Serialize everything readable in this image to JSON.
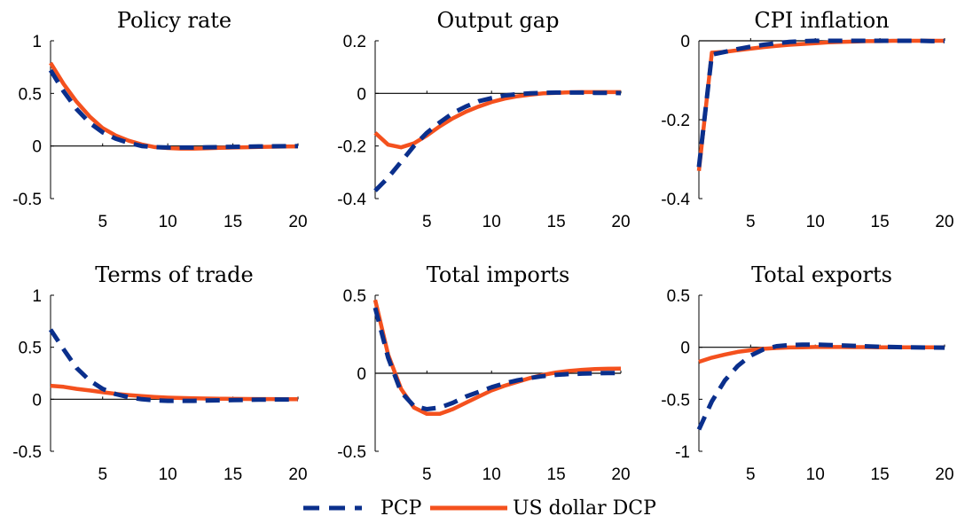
{
  "colors": {
    "pcp": "#0a2f8c",
    "dcp": "#f4511e",
    "axis": "#000000"
  },
  "legend": {
    "pcp_label": "PCP",
    "dcp_label": "US dollar DCP",
    "placement": "bottom-center"
  },
  "chart_data": [
    {
      "type": "line",
      "title": "Policy rate",
      "x": [
        1,
        2,
        3,
        4,
        5,
        6,
        7,
        8,
        9,
        10,
        11,
        12,
        13,
        14,
        15,
        16,
        17,
        18,
        19,
        20
      ],
      "xlim": [
        1,
        20
      ],
      "xticks": [
        5,
        10,
        15,
        20
      ],
      "xtick_labels": [
        "5",
        "10",
        "15",
        "20"
      ],
      "ylim": [
        -0.5,
        1
      ],
      "yticks": [
        -0.5,
        0,
        0.5,
        1
      ],
      "ytick_labels": [
        "-0.5",
        "0",
        "0.5",
        "1"
      ],
      "series": [
        {
          "name": "PCP",
          "values": [
            0.72,
            0.52,
            0.35,
            0.22,
            0.13,
            0.07,
            0.03,
            0.0,
            -0.01,
            -0.015,
            -0.015,
            -0.015,
            -0.012,
            -0.01,
            -0.008,
            -0.006,
            -0.004,
            -0.003,
            -0.002,
            -0.001
          ]
        },
        {
          "name": "US dollar DCP",
          "values": [
            0.79,
            0.59,
            0.42,
            0.28,
            0.17,
            0.1,
            0.05,
            0.015,
            -0.01,
            -0.02,
            -0.025,
            -0.025,
            -0.022,
            -0.018,
            -0.015,
            -0.012,
            -0.009,
            -0.007,
            -0.005,
            -0.004
          ]
        }
      ]
    },
    {
      "type": "line",
      "title": "Output gap",
      "x": [
        1,
        2,
        3,
        4,
        5,
        6,
        7,
        8,
        9,
        10,
        11,
        12,
        13,
        14,
        15,
        16,
        17,
        18,
        19,
        20
      ],
      "xlim": [
        1,
        20
      ],
      "xticks": [
        5,
        10,
        15,
        20
      ],
      "xtick_labels": [
        "5",
        "10",
        "15",
        "20"
      ],
      "ylim": [
        -0.4,
        0.2
      ],
      "yticks": [
        -0.4,
        -0.2,
        0,
        0.2
      ],
      "ytick_labels": [
        "-0.4",
        "-0.2",
        "0",
        "0.2"
      ],
      "series": [
        {
          "name": "PCP",
          "values": [
            -0.37,
            -0.32,
            -0.26,
            -0.2,
            -0.15,
            -0.11,
            -0.075,
            -0.05,
            -0.03,
            -0.018,
            -0.008,
            -0.003,
            0.0,
            0.002,
            0.003,
            0.003,
            0.003,
            0.002,
            0.002,
            0.001
          ]
        },
        {
          "name": "US dollar DCP",
          "values": [
            -0.15,
            -0.195,
            -0.205,
            -0.19,
            -0.16,
            -0.125,
            -0.095,
            -0.07,
            -0.05,
            -0.033,
            -0.02,
            -0.011,
            -0.005,
            0.0,
            0.002,
            0.004,
            0.005,
            0.005,
            0.005,
            0.005
          ]
        }
      ]
    },
    {
      "type": "line",
      "title": "CPI inflation",
      "x": [
        1,
        2,
        3,
        4,
        5,
        6,
        7,
        8,
        9,
        10,
        11,
        12,
        13,
        14,
        15,
        16,
        17,
        18,
        19,
        20
      ],
      "xlim": [
        1,
        20
      ],
      "xticks": [
        5,
        10,
        15,
        20
      ],
      "xtick_labels": [
        "5",
        "10",
        "15",
        "20"
      ],
      "ylim": [
        -0.4,
        0
      ],
      "yticks": [
        -0.4,
        -0.2,
        0
      ],
      "ytick_labels": [
        "-0.4",
        "-0.2",
        "0"
      ],
      "series": [
        {
          "name": "PCP",
          "values": [
            -0.32,
            -0.035,
            -0.028,
            -0.021,
            -0.015,
            -0.01,
            -0.006,
            -0.003,
            -0.001,
            0.0,
            0.0,
            0.0,
            0.0,
            0.0,
            0.0,
            0.0,
            0.0,
            0.0,
            -0.001,
            -0.001
          ]
        },
        {
          "name": "US dollar DCP",
          "values": [
            -0.33,
            -0.03,
            -0.028,
            -0.024,
            -0.02,
            -0.016,
            -0.013,
            -0.01,
            -0.008,
            -0.006,
            -0.004,
            -0.003,
            -0.002,
            -0.001,
            -0.001,
            0.0,
            0.0,
            0.0,
            0.0,
            0.0
          ]
        }
      ]
    },
    {
      "type": "line",
      "title": "Terms of trade",
      "x": [
        1,
        2,
        3,
        4,
        5,
        6,
        7,
        8,
        9,
        10,
        11,
        12,
        13,
        14,
        15,
        16,
        17,
        18,
        19,
        20
      ],
      "xlim": [
        1,
        20
      ],
      "xticks": [
        5,
        10,
        15,
        20
      ],
      "xtick_labels": [
        "5",
        "10",
        "15",
        "20"
      ],
      "ylim": [
        -0.5,
        1
      ],
      "yticks": [
        -0.5,
        0,
        0.5,
        1
      ],
      "ytick_labels": [
        "-0.5",
        "0",
        "0.5",
        "1"
      ],
      "series": [
        {
          "name": "PCP",
          "values": [
            0.67,
            0.48,
            0.3,
            0.18,
            0.1,
            0.05,
            0.02,
            0.0,
            -0.01,
            -0.015,
            -0.015,
            -0.015,
            -0.012,
            -0.01,
            -0.008,
            -0.006,
            -0.004,
            -0.003,
            -0.002,
            -0.001
          ]
        },
        {
          "name": "US dollar DCP",
          "values": [
            0.13,
            0.12,
            0.1,
            0.085,
            0.068,
            0.052,
            0.04,
            0.03,
            0.022,
            0.016,
            0.012,
            0.009,
            0.007,
            0.005,
            0.004,
            0.003,
            0.002,
            0.002,
            0.001,
            0.001
          ]
        }
      ]
    },
    {
      "type": "line",
      "title": "Total imports",
      "x": [
        1,
        2,
        3,
        4,
        5,
        6,
        7,
        8,
        9,
        10,
        11,
        12,
        13,
        14,
        15,
        16,
        17,
        18,
        19,
        20
      ],
      "xlim": [
        1,
        20
      ],
      "xticks": [
        5,
        10,
        15,
        20
      ],
      "xtick_labels": [
        "5",
        "10",
        "15",
        "20"
      ],
      "ylim": [
        -0.5,
        0.5
      ],
      "yticks": [
        -0.5,
        0,
        0.5
      ],
      "ytick_labels": [
        "-0.5",
        "0",
        "0.5"
      ],
      "series": [
        {
          "name": "PCP",
          "values": [
            0.42,
            0.1,
            -0.12,
            -0.21,
            -0.23,
            -0.22,
            -0.19,
            -0.15,
            -0.12,
            -0.09,
            -0.065,
            -0.045,
            -0.03,
            -0.018,
            -0.01,
            -0.005,
            -0.002,
            0.0,
            0.001,
            0.001
          ]
        },
        {
          "name": "US dollar DCP",
          "values": [
            0.47,
            0.12,
            -0.1,
            -0.22,
            -0.26,
            -0.26,
            -0.23,
            -0.19,
            -0.15,
            -0.11,
            -0.08,
            -0.055,
            -0.03,
            -0.01,
            0.005,
            0.015,
            0.022,
            0.027,
            0.029,
            0.03
          ]
        }
      ]
    },
    {
      "type": "line",
      "title": "Total exports",
      "x": [
        1,
        2,
        3,
        4,
        5,
        6,
        7,
        8,
        9,
        10,
        11,
        12,
        13,
        14,
        15,
        16,
        17,
        18,
        19,
        20
      ],
      "xlim": [
        1,
        20
      ],
      "xticks": [
        5,
        10,
        15,
        20
      ],
      "xtick_labels": [
        "5",
        "10",
        "15",
        "20"
      ],
      "ylim": [
        -1,
        0.5
      ],
      "yticks": [
        -1,
        -0.5,
        0,
        0.5
      ],
      "ytick_labels": [
        "-1",
        "-0.5",
        "0",
        "0.5"
      ],
      "series": [
        {
          "name": "PCP",
          "values": [
            -0.79,
            -0.52,
            -0.32,
            -0.18,
            -0.08,
            -0.02,
            0.01,
            0.02,
            0.025,
            0.025,
            0.022,
            0.018,
            0.013,
            0.009,
            0.005,
            0.002,
            0.0,
            -0.002,
            -0.003,
            -0.004
          ]
        },
        {
          "name": "US dollar DCP",
          "values": [
            -0.14,
            -0.1,
            -0.07,
            -0.045,
            -0.028,
            -0.015,
            -0.007,
            -0.002,
            0.0,
            0.002,
            0.002,
            0.002,
            0.001,
            0.001,
            0.0,
            0.0,
            0.0,
            0.0,
            0.0,
            0.0
          ]
        }
      ]
    }
  ]
}
